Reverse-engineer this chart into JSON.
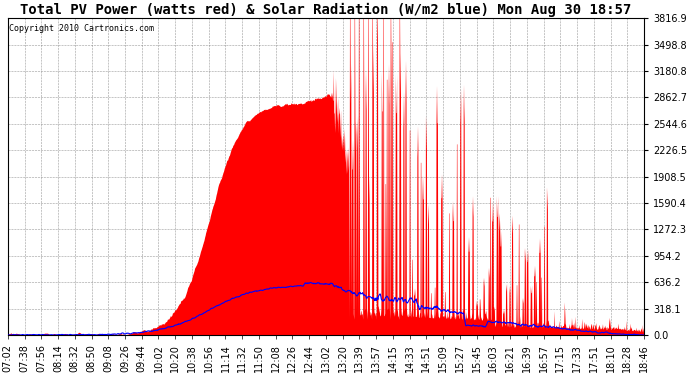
{
  "title": "Total PV Power (watts red) & Solar Radiation (W/m2 blue) Mon Aug 30 18:57",
  "copyright": "Copyright 2010 Cartronics.com",
  "y_max": 3816.9,
  "y_ticks": [
    0.0,
    318.1,
    636.2,
    954.2,
    1272.3,
    1590.4,
    1908.5,
    2226.5,
    2544.6,
    2862.7,
    3180.8,
    3498.8,
    3816.9
  ],
  "y_tick_labels": [
    "0.0",
    "318.1",
    "636.2",
    "954.2",
    "1272.3",
    "1590.4",
    "1908.5",
    "2226.5",
    "2544.6",
    "2862.7",
    "3180.8",
    "3498.8",
    "3816.9"
  ],
  "x_tick_labels": [
    "07:02",
    "07:38",
    "07:56",
    "08:14",
    "08:32",
    "08:50",
    "09:08",
    "09:26",
    "09:44",
    "10:02",
    "10:20",
    "10:38",
    "10:56",
    "11:14",
    "11:32",
    "11:50",
    "12:08",
    "12:26",
    "12:44",
    "13:02",
    "13:20",
    "13:39",
    "13:57",
    "14:15",
    "14:33",
    "14:51",
    "15:09",
    "15:27",
    "15:45",
    "16:03",
    "16:21",
    "16:39",
    "16:57",
    "17:15",
    "17:33",
    "17:51",
    "18:10",
    "18:28",
    "18:46"
  ],
  "background_color": "#ffffff",
  "plot_bg_color": "#ffffff",
  "grid_color": "#808080",
  "red_color": "#ff0000",
  "blue_color": "#0000ff",
  "title_fontsize": 10,
  "tick_fontsize": 7,
  "figwidth": 6.9,
  "figheight": 3.75,
  "dpi": 100
}
